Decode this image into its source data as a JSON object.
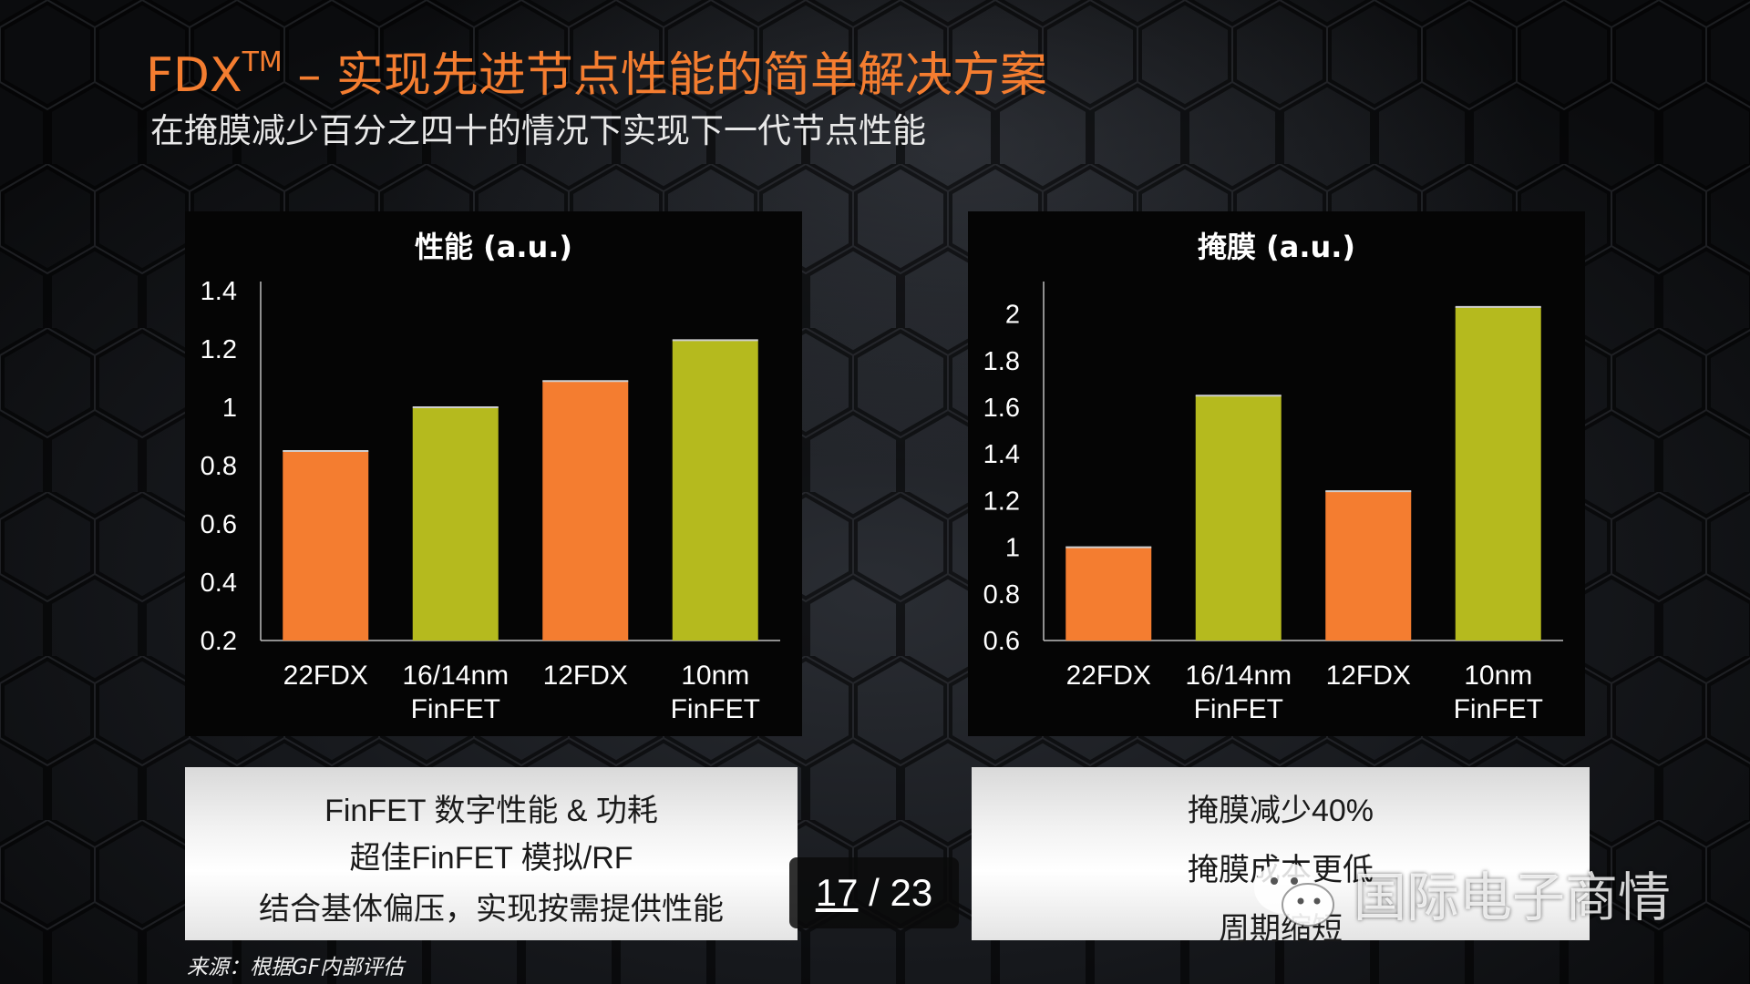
{
  "slide": {
    "title_main": "FDX",
    "title_sup": "TM",
    "title_rest": " – 实现先进节点性能的简单解决方案",
    "subtitle": "在掩膜减少百分之四十的情况下实现下一代节点性能",
    "source": "来源：根据GF内部评估",
    "page": {
      "current": "17",
      "separator": " / ",
      "total": "23"
    },
    "watermark": {
      "text": "国际电子商情"
    }
  },
  "colors": {
    "orange": "#f47d30",
    "olive": "#b5ba1e",
    "title": "#f47d30"
  },
  "chart_data": [
    {
      "type": "bar",
      "title": "性能 (a.u.)",
      "categories": [
        [
          "22FDX"
        ],
        [
          "16/14nm",
          "FinFET"
        ],
        [
          "12FDX"
        ],
        [
          "10nm",
          "FinFET"
        ]
      ],
      "values": [
        0.85,
        1.0,
        1.09,
        1.23
      ],
      "bar_colors": [
        "#f47d30",
        "#b5ba1e",
        "#f47d30",
        "#b5ba1e"
      ],
      "ylim": [
        0.2,
        1.4
      ],
      "yticks": [
        0.2,
        0.4,
        0.6,
        0.8,
        1,
        1.2,
        1.4
      ],
      "grid": false
    },
    {
      "type": "bar",
      "title": "掩膜 (a.u.)",
      "categories": [
        [
          "22FDX"
        ],
        [
          "16/14nm",
          "FinFET"
        ],
        [
          "12FDX"
        ],
        [
          "10nm",
          "FinFET"
        ]
      ],
      "values": [
        1.0,
        1.65,
        1.24,
        2.03
      ],
      "bar_colors": [
        "#f47d30",
        "#b5ba1e",
        "#f47d30",
        "#b5ba1e"
      ],
      "ylim": [
        0.6,
        2.1
      ],
      "yticks": [
        0.6,
        0.8,
        1,
        1.2,
        1.4,
        1.6,
        1.8,
        2
      ],
      "grid": false
    }
  ],
  "boxes": {
    "left": [
      "FinFET 数字性能 & 功耗",
      "超佳FinFET 模拟/RF",
      "结合基体偏压，实现按需提供性能"
    ],
    "right": [
      "掩膜减少40%",
      "掩膜成本更低",
      "周期缩短"
    ]
  }
}
